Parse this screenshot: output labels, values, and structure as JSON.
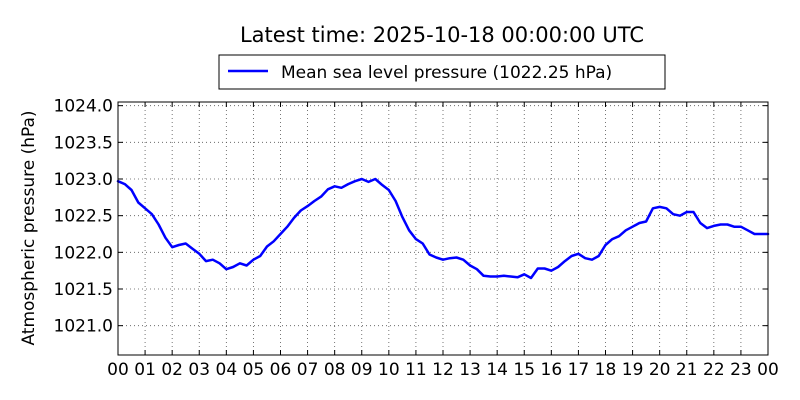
{
  "chart_data": {
    "type": "line",
    "title": "Latest time: 2025-10-18 00:00:00 UTC",
    "ylabel": "Atmospheric pressure (hPa)",
    "xlabel": "",
    "xlim": [
      0,
      24
    ],
    "ylim": [
      1020.6,
      1024.05
    ],
    "grid": true,
    "legend_position": "top-center",
    "x_tick_labels": [
      "00",
      "01",
      "02",
      "03",
      "04",
      "05",
      "06",
      "07",
      "08",
      "09",
      "10",
      "11",
      "12",
      "13",
      "14",
      "15",
      "16",
      "17",
      "18",
      "19",
      "20",
      "21",
      "22",
      "23",
      "00"
    ],
    "y_ticks": [
      1021.0,
      1021.5,
      1022.0,
      1022.5,
      1023.0,
      1023.5,
      1024.0
    ],
    "y_tick_labels": [
      "1021.0",
      "1021.5",
      "1022.0",
      "1022.5",
      "1023.0",
      "1023.5",
      "1024.0"
    ],
    "series": [
      {
        "name": "Mean sea level pressure (1022.25 hPa)",
        "color": "#0000ff",
        "x": [
          0.0,
          0.25,
          0.5,
          0.75,
          1.0,
          1.25,
          1.5,
          1.75,
          2.0,
          2.25,
          2.5,
          2.75,
          3.0,
          3.25,
          3.5,
          3.75,
          4.0,
          4.25,
          4.5,
          4.75,
          5.0,
          5.25,
          5.5,
          5.75,
          6.0,
          6.25,
          6.5,
          6.75,
          7.0,
          7.25,
          7.5,
          7.75,
          8.0,
          8.25,
          8.5,
          8.75,
          9.0,
          9.25,
          9.5,
          9.75,
          10.0,
          10.25,
          10.5,
          10.75,
          11.0,
          11.25,
          11.5,
          11.75,
          12.0,
          12.25,
          12.5,
          12.75,
          13.0,
          13.25,
          13.5,
          13.75,
          14.0,
          14.25,
          14.5,
          14.75,
          15.0,
          15.25,
          15.5,
          15.75,
          16.0,
          16.25,
          16.5,
          16.75,
          17.0,
          17.25,
          17.5,
          17.75,
          18.0,
          18.25,
          18.5,
          18.75,
          19.0,
          19.25,
          19.5,
          19.75,
          20.0,
          20.25,
          20.5,
          20.75,
          21.0,
          21.25,
          21.5,
          21.75,
          22.0,
          22.25,
          22.5,
          22.75,
          23.0,
          23.25,
          23.5,
          23.75,
          24.0
        ],
        "y": [
          1022.97,
          1022.93,
          1022.85,
          1022.68,
          1022.6,
          1022.52,
          1022.38,
          1022.2,
          1022.07,
          1022.1,
          1022.12,
          1022.05,
          1021.98,
          1021.88,
          1021.9,
          1021.85,
          1021.77,
          1021.8,
          1021.85,
          1021.82,
          1021.9,
          1021.95,
          1022.08,
          1022.15,
          1022.25,
          1022.35,
          1022.47,
          1022.57,
          1022.63,
          1022.7,
          1022.76,
          1022.86,
          1022.9,
          1022.88,
          1022.93,
          1022.97,
          1023.0,
          1022.96,
          1023.0,
          1022.92,
          1022.85,
          1022.7,
          1022.48,
          1022.3,
          1022.18,
          1022.12,
          1021.97,
          1021.93,
          1021.9,
          1021.92,
          1021.93,
          1021.9,
          1021.82,
          1021.77,
          1021.68,
          1021.67,
          1021.67,
          1021.68,
          1021.67,
          1021.66,
          1021.7,
          1021.65,
          1021.78,
          1021.78,
          1021.75,
          1021.8,
          1021.88,
          1021.95,
          1021.98,
          1021.92,
          1021.9,
          1021.95,
          1022.1,
          1022.18,
          1022.22,
          1022.3,
          1022.35,
          1022.4,
          1022.42,
          1022.6,
          1022.62,
          1022.6,
          1022.52,
          1022.5,
          1022.55,
          1022.55,
          1022.4,
          1022.33,
          1022.36,
          1022.38,
          1022.38,
          1022.35,
          1022.35,
          1022.3,
          1022.25,
          1022.25,
          1022.25
        ]
      }
    ]
  }
}
